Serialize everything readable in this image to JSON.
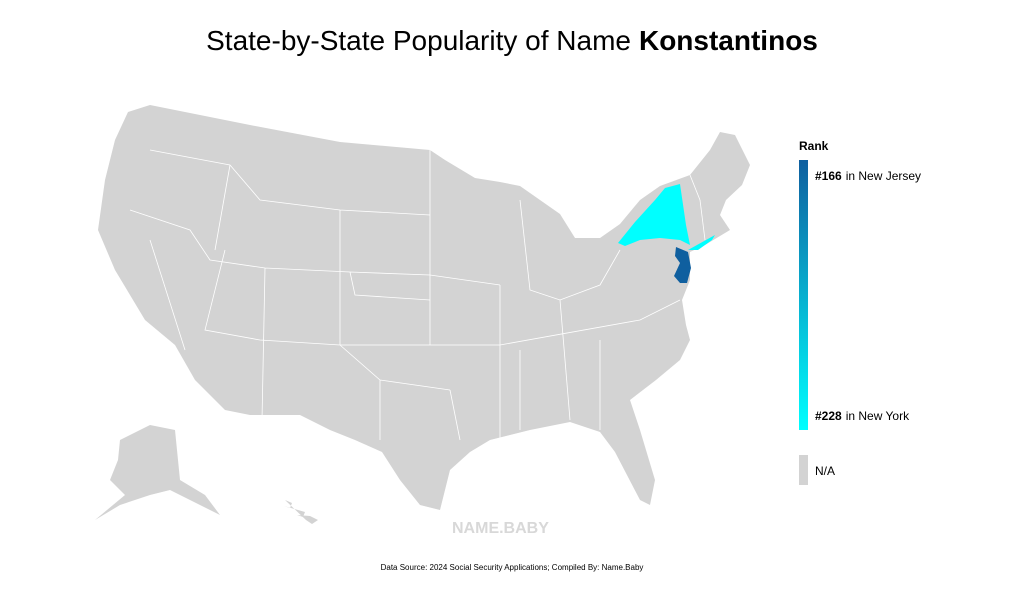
{
  "title": {
    "text": "State-by-State Popularity of Name",
    "name": "Konstantinos"
  },
  "legend": {
    "title": "Rank",
    "top": {
      "rank": "#166",
      "state": "in New Jersey",
      "color": "#0f5f9f"
    },
    "bottom": {
      "rank": "#228",
      "state": "in New York",
      "color": "#00ffff"
    },
    "na": {
      "label": "N/A",
      "color": "#d3d3d3"
    }
  },
  "watermark": "NAME.BABY",
  "source": "Data Source: 2024 Social Security Applications; Compiled By: Name.Baby"
}
